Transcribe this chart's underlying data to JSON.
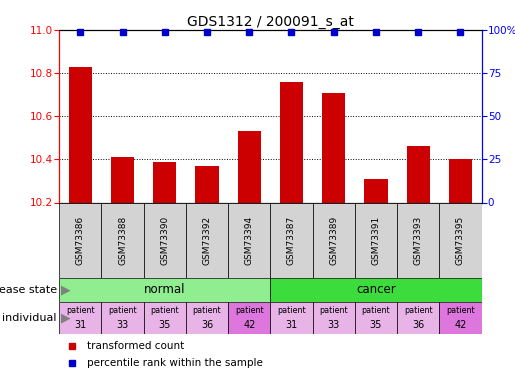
{
  "title": "GDS1312 / 200091_s_at",
  "samples": [
    "GSM73386",
    "GSM73388",
    "GSM73390",
    "GSM73392",
    "GSM73394",
    "GSM73387",
    "GSM73389",
    "GSM73391",
    "GSM73393",
    "GSM73395"
  ],
  "bar_values": [
    10.83,
    10.41,
    10.39,
    10.37,
    10.53,
    10.76,
    10.71,
    10.31,
    10.46,
    10.4
  ],
  "percentile_values": [
    99,
    99,
    99,
    99,
    99,
    99,
    99,
    99,
    99,
    99
  ],
  "y_min": 10.2,
  "y_max": 11.0,
  "y_ticks": [
    10.2,
    10.4,
    10.6,
    10.8,
    11.0
  ],
  "y2_ticks": [
    0,
    25,
    50,
    75,
    100
  ],
  "y2_tick_labels": [
    "0",
    "25",
    "50",
    "75",
    "100%"
  ],
  "bar_color": "#cc0000",
  "percentile_color": "#0000cc",
  "normal_color": "#90ee90",
  "cancer_color": "#3ddc3d",
  "sample_bg_color": "#d3d3d3",
  "individual_bg_color_normal": "#e8b4e8",
  "individual_bg_color_last": "#dd77dd",
  "individual_labels": [
    [
      "patient",
      "31"
    ],
    [
      "patient",
      "33"
    ],
    [
      "patient",
      "35"
    ],
    [
      "patient",
      "36"
    ],
    [
      "patient",
      "42"
    ],
    [
      "patient",
      "31"
    ],
    [
      "patient",
      "33"
    ],
    [
      "patient",
      "35"
    ],
    [
      "patient",
      "36"
    ],
    [
      "patient",
      "42"
    ]
  ],
  "individual_last_cols": [
    4,
    9
  ],
  "disease_state_label": "disease state",
  "individual_label": "individual",
  "legend_red_label": "transformed count",
  "legend_blue_label": "percentile rank within the sample"
}
